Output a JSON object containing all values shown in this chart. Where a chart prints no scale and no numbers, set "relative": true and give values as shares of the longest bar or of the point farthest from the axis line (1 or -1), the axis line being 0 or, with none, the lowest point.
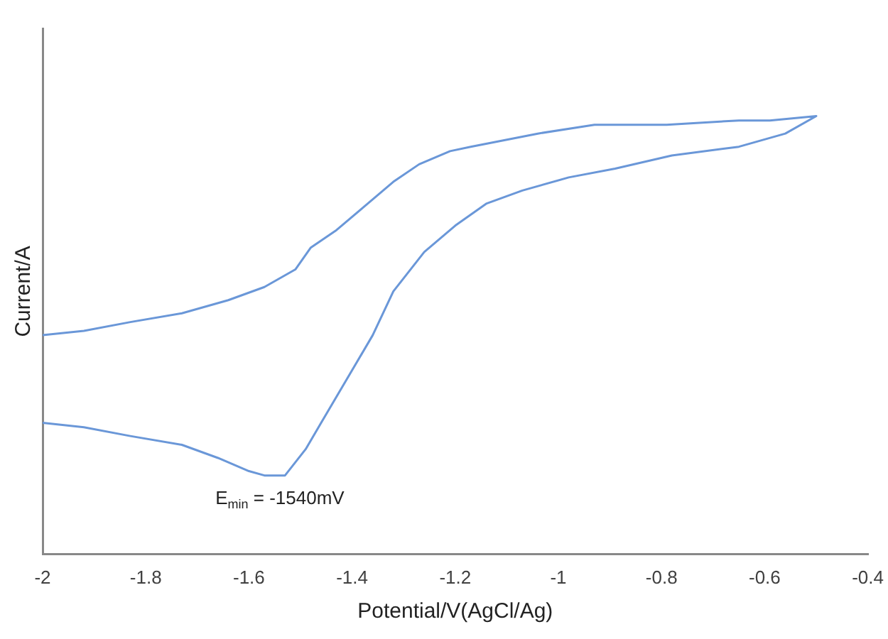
{
  "chart_data": {
    "type": "line",
    "xlabel": "Potential/V(AgCl/Ag)",
    "ylabel": "Current/A",
    "relative": true,
    "grid": false,
    "legend": false,
    "marker": "none",
    "line_style": "solid",
    "xlim": [
      -2,
      -0.4
    ],
    "xticks": [
      -2,
      -1.8,
      -1.6,
      -1.4,
      -1.2,
      -1,
      -0.8,
      -0.6,
      -0.4
    ],
    "series": [
      {
        "color": "#6a97d8",
        "x": [
          -2,
          -1.92,
          -1.83,
          -1.73,
          -1.64,
          -1.57,
          -1.51,
          -1.48,
          -1.43,
          -1.38,
          -1.32,
          -1.27,
          -1.21,
          -1.17,
          -1.04,
          -0.93,
          -0.79,
          -0.65,
          -0.59,
          -0.5,
          -0.56,
          -0.65,
          -0.78,
          -0.89,
          -0.98,
          -1.07,
          -1.14,
          -1.2,
          -1.26,
          -1.32,
          -1.36,
          -1.4,
          -1.46,
          -1.49,
          -1.53,
          -1.57,
          -1.6,
          -1.66,
          -1.73,
          -1.83,
          -1.92,
          -2
        ],
        "values": [
          0.5,
          0.51,
          0.53,
          0.55,
          0.58,
          0.61,
          0.65,
          0.7,
          0.74,
          0.79,
          0.85,
          0.89,
          0.92,
          0.93,
          0.96,
          0.98,
          0.98,
          0.99,
          0.99,
          1,
          0.96,
          0.93,
          0.91,
          0.88,
          0.86,
          0.83,
          0.8,
          0.75,
          0.69,
          0.6,
          0.5,
          0.42,
          0.3,
          0.24,
          0.18,
          0.18,
          0.19,
          0.22,
          0.25,
          0.27,
          0.29,
          0.3
        ]
      }
    ],
    "annotations": [
      {
        "text": "E$_{min}$ = -1540mV",
        "x": -1.54,
        "y": 0.18
      }
    ]
  }
}
